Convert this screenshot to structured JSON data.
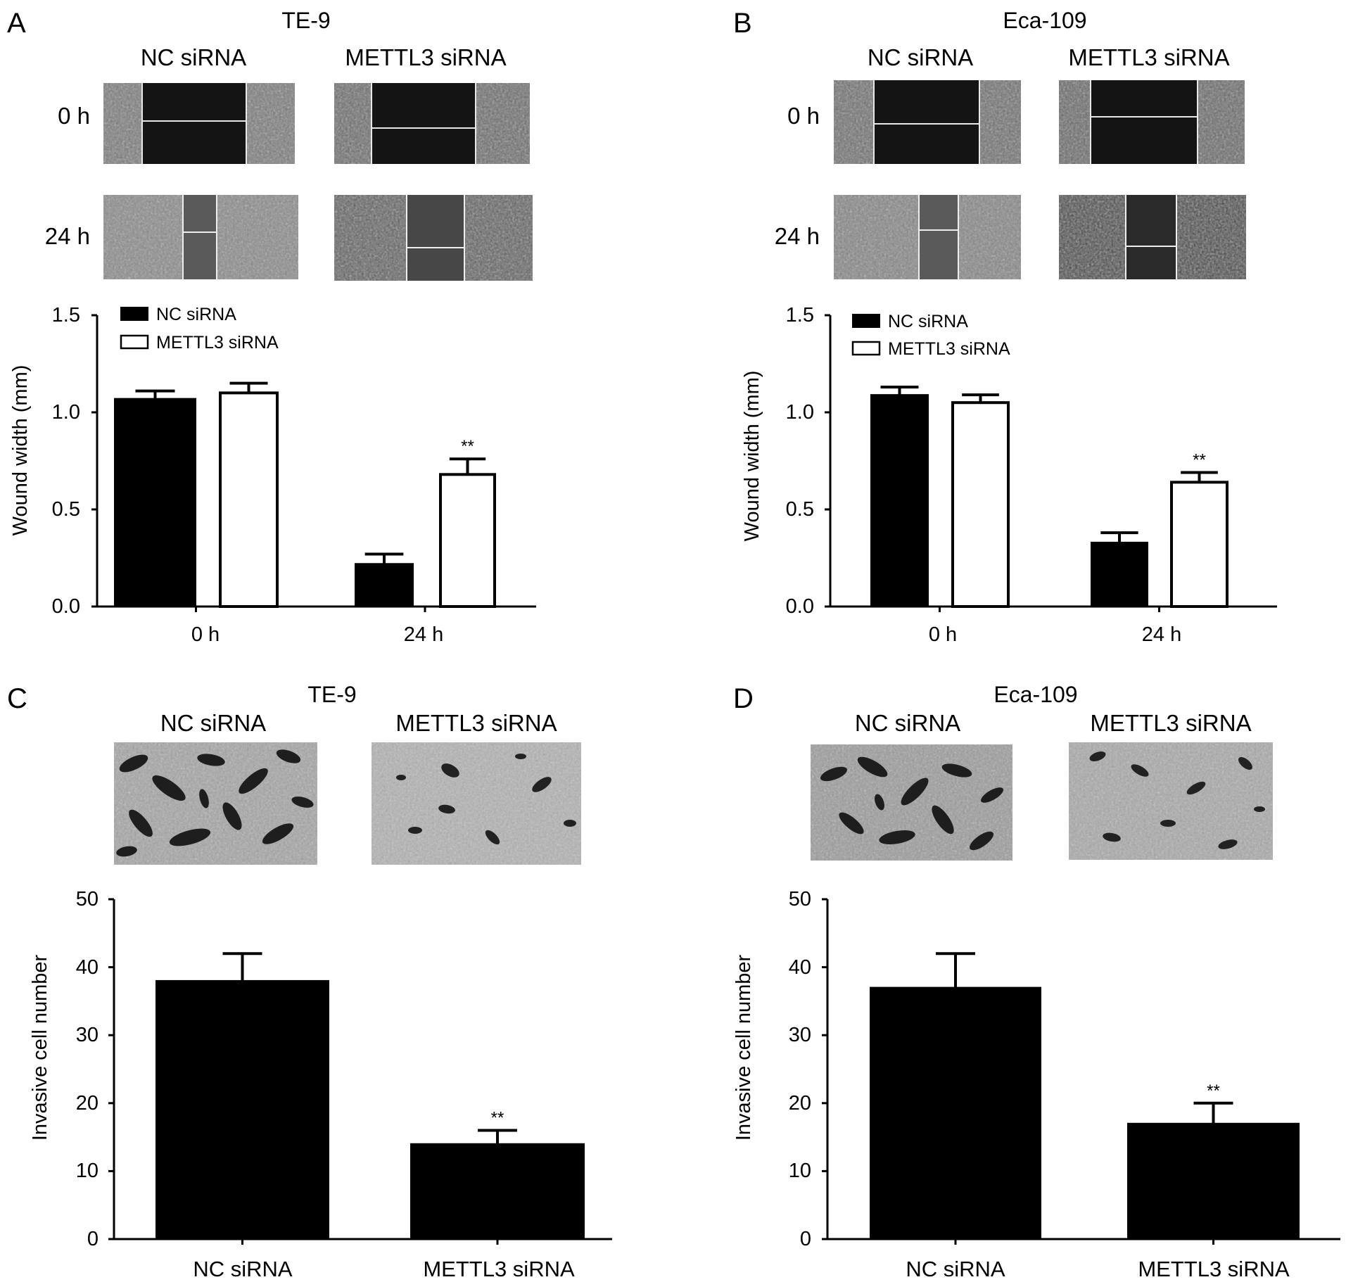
{
  "colors": {
    "background": "#ffffff",
    "ink": "#000000",
    "micrograph_dark": "#1a1a1a",
    "micrograph_cells": "#7a7a7a"
  },
  "panels": {
    "A": {
      "letter": "A",
      "cell_line": "TE-9",
      "image_columns": [
        "NC siRNA",
        "METTL3 siRNA"
      ],
      "image_rows": [
        "0 h",
        "24 h"
      ]
    },
    "B": {
      "letter": "B",
      "cell_line": "Eca-109",
      "image_columns": [
        "NC siRNA",
        "METTL3 siRNA"
      ],
      "image_rows": [
        "0 h",
        "24 h"
      ]
    },
    "C": {
      "letter": "C",
      "cell_line": "TE-9",
      "image_columns": [
        "NC siRNA",
        "METTL3 siRNA"
      ]
    },
    "D": {
      "letter": "D",
      "cell_line": "Eca-109",
      "image_columns": [
        "NC siRNA",
        "METTL3 siRNA"
      ]
    }
  },
  "chart_data": [
    {
      "panel": "A",
      "type": "bar",
      "categories": [
        "0 h",
        "24 h"
      ],
      "ylabel": "Wound width (mm)",
      "ylim": [
        0,
        1.5
      ],
      "yticks": [
        "0.0",
        "0.5",
        "1.0",
        "1.5"
      ],
      "legend": "top-left",
      "series": [
        {
          "name": "NC siRNA",
          "fill": "black",
          "values": [
            1.07,
            0.22
          ],
          "errors": [
            0.04,
            0.05
          ]
        },
        {
          "name": "METTL3 siRNA",
          "fill": "white",
          "values": [
            1.1,
            0.68
          ],
          "errors": [
            0.05,
            0.08
          ]
        }
      ],
      "annotations": [
        {
          "series": 1,
          "category": 1,
          "text": "**"
        }
      ]
    },
    {
      "panel": "B",
      "type": "bar",
      "categories": [
        "0 h",
        "24 h"
      ],
      "ylabel": "Wound width (mm)",
      "ylim": [
        0,
        1.5
      ],
      "yticks": [
        "0.0",
        "0.5",
        "1.0",
        "1.5"
      ],
      "legend": "top-left",
      "series": [
        {
          "name": "NC siRNA",
          "fill": "black",
          "values": [
            1.09,
            0.33
          ],
          "errors": [
            0.04,
            0.05
          ]
        },
        {
          "name": "METTL3 siRNA",
          "fill": "white",
          "values": [
            1.05,
            0.64
          ],
          "errors": [
            0.04,
            0.05
          ]
        }
      ],
      "annotations": [
        {
          "series": 1,
          "category": 1,
          "text": "**"
        }
      ]
    },
    {
      "panel": "C",
      "type": "bar",
      "categories": [
        "NC siRNA",
        "METTL3 siRNA"
      ],
      "ylabel": "Invasive cell number",
      "ylim": [
        0,
        50
      ],
      "yticks": [
        "0",
        "10",
        "20",
        "30",
        "40",
        "50"
      ],
      "series": [
        {
          "fill": "black",
          "values": [
            38,
            14
          ],
          "errors": [
            4,
            2
          ]
        }
      ],
      "annotations": [
        {
          "series": 0,
          "category": 1,
          "text": "**"
        }
      ]
    },
    {
      "panel": "D",
      "type": "bar",
      "categories": [
        "NC siRNA",
        "METTL3 siRNA"
      ],
      "ylabel": "Invasive cell number",
      "ylim": [
        0,
        50
      ],
      "yticks": [
        "0",
        "10",
        "20",
        "30",
        "40",
        "50"
      ],
      "series": [
        {
          "fill": "black",
          "values": [
            37,
            17
          ],
          "errors": [
            5,
            3
          ]
        }
      ],
      "annotations": [
        {
          "series": 0,
          "category": 1,
          "text": "**"
        }
      ]
    }
  ]
}
